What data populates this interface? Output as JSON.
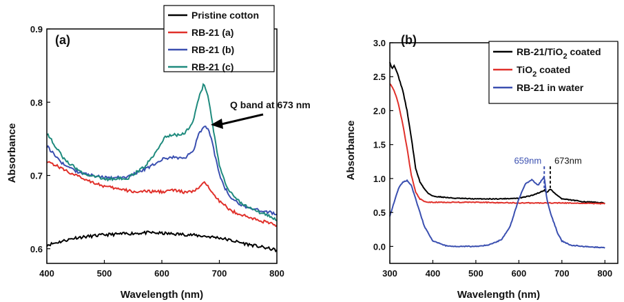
{
  "chart_data": [
    {
      "type": "line",
      "panel_label": "(a)",
      "xlabel": "Wavelength (nm)",
      "ylabel": "Absorbance",
      "xlim": [
        400,
        800
      ],
      "ylim": [
        0.58,
        0.9
      ],
      "xticks": [
        400,
        500,
        600,
        700,
        800
      ],
      "yticks": [
        0.6,
        0.7,
        0.8,
        0.9
      ],
      "xtick_labels": [
        "400",
        "500",
        "600",
        "700",
        "800"
      ],
      "ytick_labels": [
        "0.6",
        "0.7",
        "0.8",
        "0.9"
      ],
      "legend_position": "top",
      "annotation": {
        "text": "Q band at 673 nm",
        "points_to": [
          675,
          0.767
        ]
      },
      "series": [
        {
          "name": "Pristine cotton",
          "color": "#000000",
          "x": [
            400,
            450,
            500,
            550,
            580,
            600,
            650,
            700,
            750,
            800
          ],
          "y": [
            0.605,
            0.615,
            0.619,
            0.621,
            0.622,
            0.621,
            0.619,
            0.615,
            0.606,
            0.598
          ]
        },
        {
          "name": "RB-21 (a)",
          "color": "#e0302a",
          "x": [
            400,
            450,
            500,
            550,
            600,
            620,
            640,
            655,
            665,
            675,
            685,
            700,
            720,
            750,
            800
          ],
          "y": [
            0.72,
            0.7,
            0.685,
            0.678,
            0.678,
            0.68,
            0.677,
            0.678,
            0.684,
            0.69,
            0.681,
            0.665,
            0.652,
            0.643,
            0.632
          ]
        },
        {
          "name": "RB-21 (b)",
          "color": "#3a4fb0",
          "x": [
            400,
            430,
            460,
            500,
            540,
            580,
            600,
            620,
            640,
            655,
            665,
            675,
            685,
            695,
            705,
            720,
            750,
            800
          ],
          "y": [
            0.74,
            0.714,
            0.703,
            0.697,
            0.698,
            0.712,
            0.722,
            0.725,
            0.723,
            0.735,
            0.758,
            0.769,
            0.755,
            0.718,
            0.69,
            0.668,
            0.655,
            0.648
          ]
        },
        {
          "name": "RB-21 (c)",
          "color": "#1e8a7d",
          "x": [
            400,
            430,
            460,
            500,
            540,
            570,
            590,
            605,
            620,
            640,
            655,
            665,
            673,
            680,
            690,
            700,
            715,
            740,
            800
          ],
          "y": [
            0.758,
            0.722,
            0.704,
            0.695,
            0.696,
            0.712,
            0.733,
            0.752,
            0.755,
            0.757,
            0.775,
            0.808,
            0.825,
            0.81,
            0.76,
            0.715,
            0.68,
            0.66,
            0.64
          ]
        }
      ]
    },
    {
      "type": "line",
      "panel_label": "(b)",
      "xlabel": "Wavelength (nm)",
      "ylabel": "Absorbance",
      "xlim": [
        300,
        830
      ],
      "ylim": [
        -0.25,
        3.0
      ],
      "xticks": [
        300,
        400,
        500,
        600,
        700,
        800
      ],
      "yticks": [
        0.0,
        0.5,
        1.0,
        1.5,
        2.0,
        2.5,
        3.0
      ],
      "xtick_labels": [
        "300",
        "400",
        "500",
        "600",
        "700",
        "800"
      ],
      "ytick_labels": [
        "0.0",
        "0.5",
        "1.0",
        "1.5",
        "2.0",
        "2.5",
        "3.0"
      ],
      "legend_position": "top-right",
      "peak_labels": [
        {
          "text": "659nm",
          "x": 659,
          "color": "#3a4fb0"
        },
        {
          "text": "673nm",
          "x": 673,
          "color": "#111111"
        }
      ],
      "series": [
        {
          "name_main": "RB-21/TiO",
          "name_sub": "2",
          "name_tail": " coated",
          "color": "#000000",
          "x": [
            300,
            305,
            310,
            315,
            320,
            330,
            340,
            350,
            360,
            370,
            380,
            390,
            400,
            450,
            500,
            550,
            600,
            630,
            650,
            660,
            665,
            673,
            680,
            700,
            750,
            800
          ],
          "y": [
            2.72,
            2.62,
            2.66,
            2.6,
            2.5,
            2.3,
            2.0,
            1.6,
            1.15,
            0.95,
            0.85,
            0.78,
            0.74,
            0.71,
            0.7,
            0.7,
            0.71,
            0.75,
            0.8,
            0.83,
            0.79,
            0.85,
            0.8,
            0.7,
            0.66,
            0.64
          ]
        },
        {
          "name_main": "TiO",
          "name_sub": "2",
          "name_tail": " coated",
          "color": "#e0302a",
          "x": [
            300,
            310,
            320,
            330,
            340,
            350,
            360,
            370,
            380,
            390,
            400,
            500,
            600,
            700,
            800
          ],
          "y": [
            2.4,
            2.3,
            2.1,
            1.8,
            1.45,
            1.05,
            0.8,
            0.7,
            0.66,
            0.65,
            0.65,
            0.65,
            0.64,
            0.64,
            0.63
          ]
        },
        {
          "name_main": "RB-21 in water",
          "name_sub": "",
          "name_tail": "",
          "color": "#3a4fb0",
          "x": [
            300,
            310,
            320,
            330,
            340,
            350,
            360,
            380,
            400,
            430,
            450,
            500,
            530,
            560,
            580,
            600,
            615,
            630,
            645,
            659,
            665,
            673,
            690,
            700,
            720,
            750,
            800
          ],
          "y": [
            0.45,
            0.65,
            0.85,
            0.95,
            0.97,
            0.9,
            0.7,
            0.3,
            0.08,
            0.01,
            0.0,
            0.0,
            0.02,
            0.1,
            0.3,
            0.7,
            0.92,
            0.98,
            0.9,
            1.03,
            0.7,
            0.5,
            0.2,
            0.08,
            0.02,
            0.0,
            -0.02
          ]
        }
      ]
    }
  ]
}
